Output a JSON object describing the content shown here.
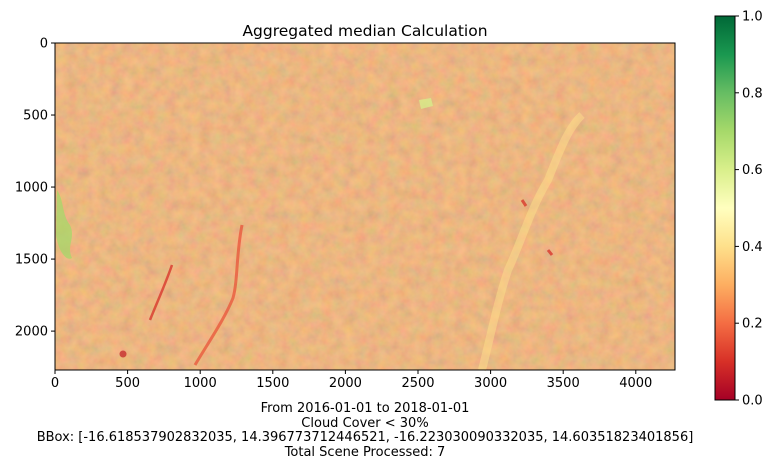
{
  "chart_data": {
    "type": "heatmap",
    "title": "Aggregated median Calculation",
    "xlabel": "",
    "ylabel": "",
    "xlim": [
      0,
      4270
    ],
    "ylim": [
      2270,
      0
    ],
    "x_ticks": [
      0,
      500,
      1000,
      1500,
      2000,
      2500,
      3000,
      3500,
      4000
    ],
    "y_ticks": [
      0,
      500,
      1000,
      1500,
      2000
    ],
    "colorbar": {
      "colormap": "RdYlGn",
      "range": [
        0.0,
        1.0
      ],
      "ticks": [
        "0.0",
        "0.2",
        "0.4",
        "0.6",
        "0.8",
        "1.0"
      ],
      "stops": [
        "#a50026",
        "#d73027",
        "#f46d43",
        "#fdae61",
        "#fee08b",
        "#ffffbf",
        "#d9ef8b",
        "#a6d96a",
        "#66bd63",
        "#1a9850",
        "#006837"
      ]
    },
    "dominant_value_range": [
      0.25,
      0.4
    ],
    "grid": false
  },
  "captions": {
    "line1": "From 2016-01-01 to 2018-01-01",
    "line2": "Cloud Cover < 30%",
    "line3": "BBox: [-16.618537902832035, 14.396773712446521, -16.223030090332035, 14.60351823401856]",
    "line4": "Total Scene Processed: 7"
  }
}
